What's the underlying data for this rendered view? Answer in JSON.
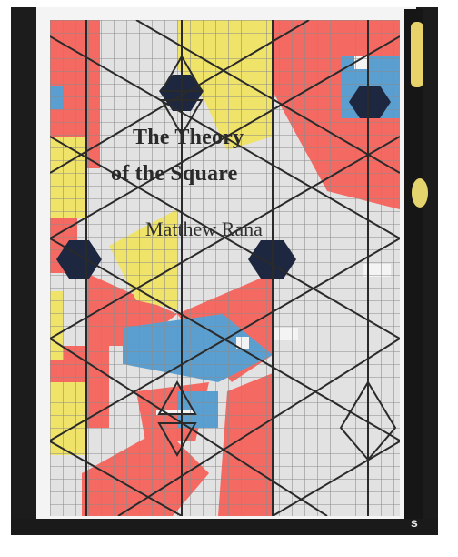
{
  "book": {
    "title_line_1": "The Theory",
    "title_line_2": "of the Square",
    "author": "Matthew Rana"
  },
  "background": {
    "visible_spine_text": "s"
  },
  "colors": {
    "backdrop": "#1c1c1c",
    "paper": "#e4e4e4",
    "grid_line": "#8a8a8a",
    "pattern_line": "#2a2a2a",
    "red": "#f46a63",
    "yellow": "#efe36a",
    "blue": "#5b9fd0",
    "navy": "#1d2740"
  }
}
